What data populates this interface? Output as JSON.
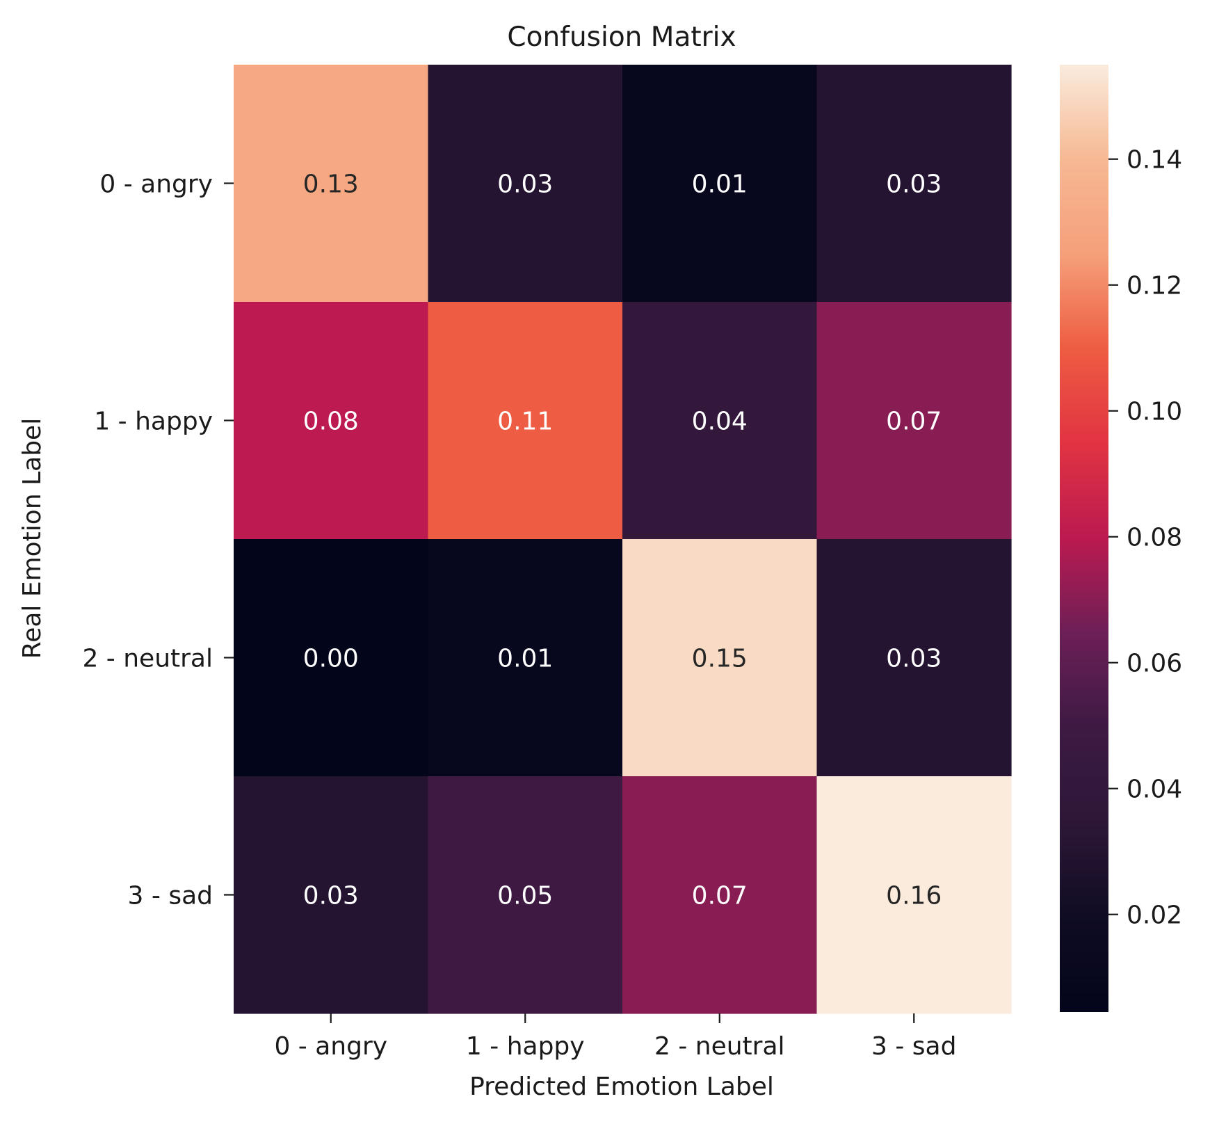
{
  "chart_data": {
    "type": "heatmap",
    "title": "Confusion Matrix",
    "xlabel": "Predicted Emotion Label",
    "ylabel": "Real Emotion Label",
    "x_categories": [
      "0 - angry",
      "1 - happy",
      "2 - neutral",
      "3 - sad"
    ],
    "y_categories": [
      "0 - angry",
      "1 - happy",
      "2 - neutral",
      "3 - sad"
    ],
    "values": [
      [
        0.13,
        0.03,
        0.01,
        0.03
      ],
      [
        0.08,
        0.11,
        0.04,
        0.07
      ],
      [
        0.0,
        0.01,
        0.15,
        0.03
      ],
      [
        0.03,
        0.05,
        0.07,
        0.16
      ]
    ],
    "value_labels": [
      [
        "0.13",
        "0.03",
        "0.01",
        "0.03"
      ],
      [
        "0.08",
        "0.11",
        "0.04",
        "0.07"
      ],
      [
        "0.00",
        "0.01",
        "0.15",
        "0.03"
      ],
      [
        "0.03",
        "0.05",
        "0.07",
        "0.16"
      ]
    ],
    "colorbar": {
      "range": [
        0.0045,
        0.155
      ],
      "ticks": [
        0.02,
        0.04,
        0.06,
        0.08,
        0.1,
        0.12,
        0.14
      ],
      "tick_labels": [
        "0.02",
        "0.04",
        "0.06",
        "0.08",
        "0.10",
        "0.12",
        "0.14"
      ],
      "colormap": "rocket"
    },
    "colors": [
      "#03051a",
      "#0f0c23",
      "#2d1737",
      "#3d1a42",
      "#6c1f56",
      "#bb1a50",
      "#e13342",
      "#ee5c42",
      "#f5a07a",
      "#f6b893",
      "#faebdd"
    ]
  }
}
